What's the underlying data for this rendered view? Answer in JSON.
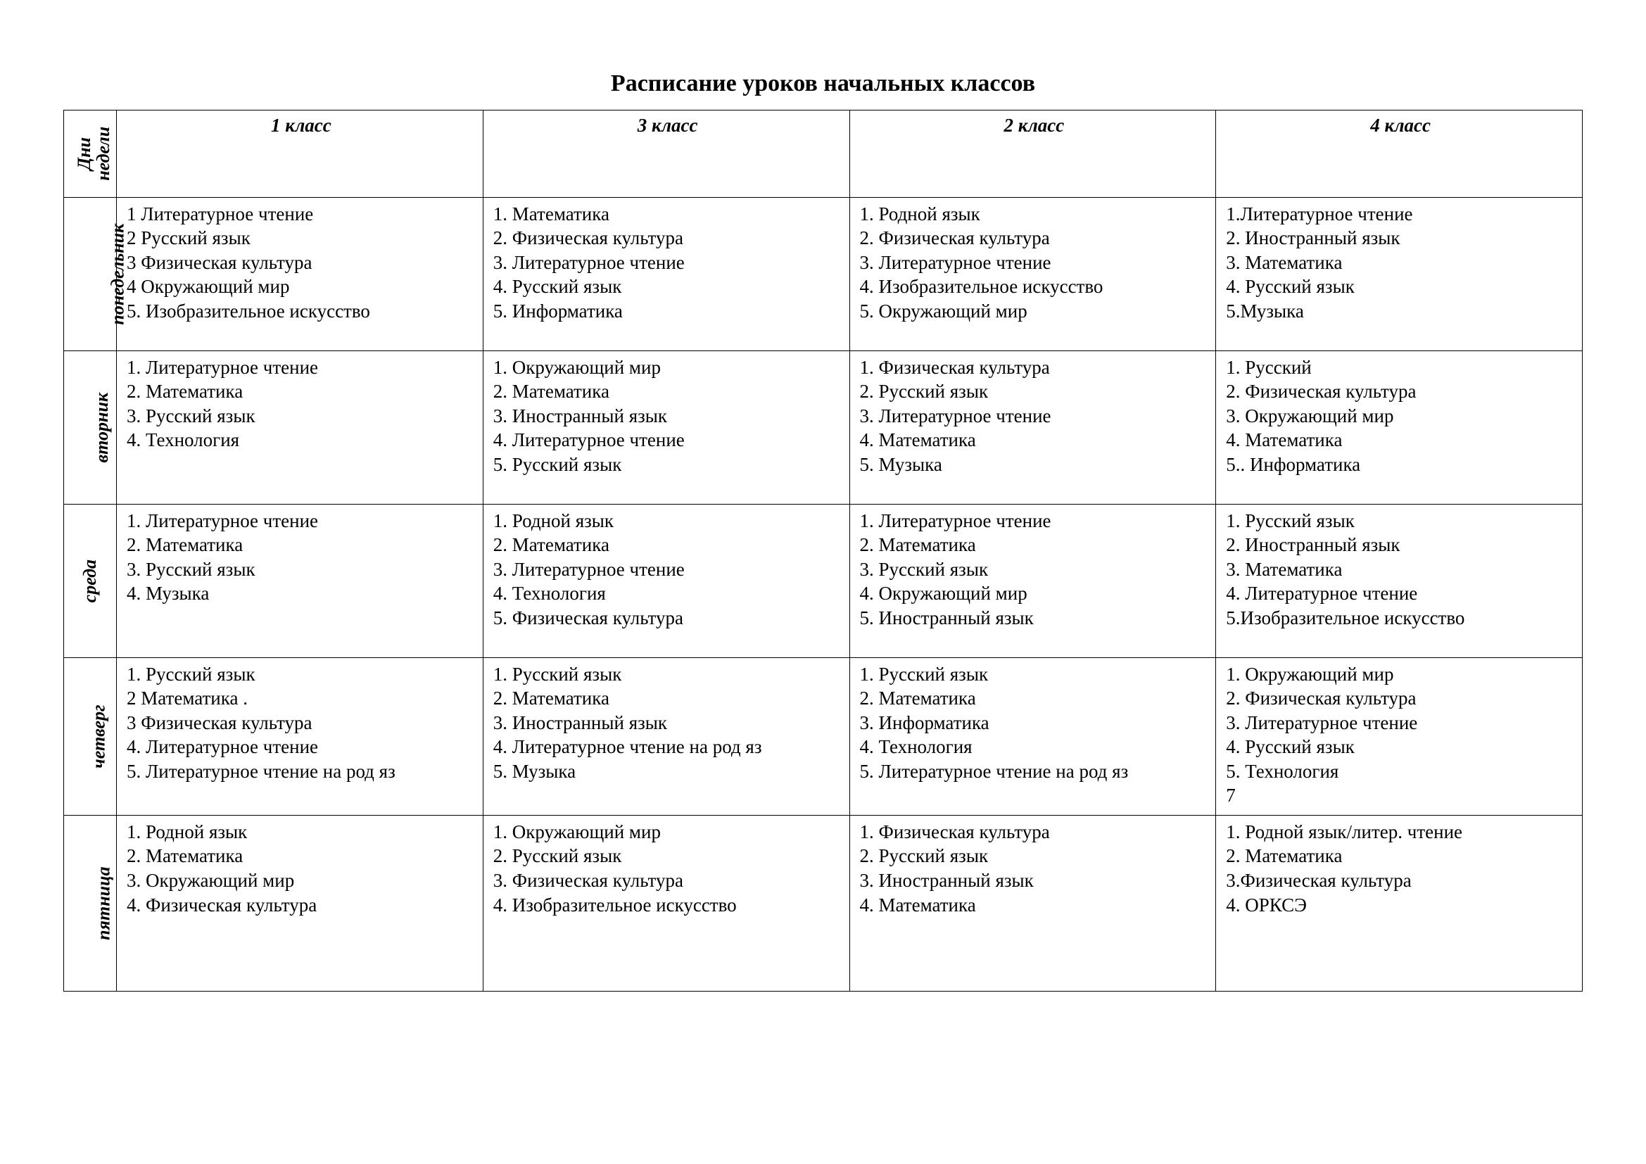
{
  "title": "Расписание уроков начальных классов",
  "header_corner_line1": "Дни",
  "header_corner_line2": "недели",
  "columns": [
    "1 класс",
    "3 класс",
    "2 класс",
    "4 класс"
  ],
  "days": [
    "понедельник",
    "вторник",
    "среда",
    "четверг",
    "пятница"
  ],
  "style": {
    "page_background": "#ffffff",
    "text_color": "#000000",
    "border_color": "#000000",
    "font_family": "Times New Roman",
    "title_fontsize_pt": 34,
    "body_fontsize_pt": 27,
    "day_fontsize_pt": 26
  },
  "schedule": {
    "mon": {
      "c1": [
        "1 Литературное чтение",
        "2 Русский язык",
        "3 Физическая культура",
        "4 Окружающий мир",
        "5. Изобразительное искусство"
      ],
      "c3": [
        "1. Математика",
        "2. Физическая культура",
        "3. Литературное чтение",
        "4. Русский язык",
        "5. Информатика"
      ],
      "c2": [
        "1. Родной язык",
        "2. Физическая культура",
        "3. Литературное чтение",
        "4. Изобразительное искусство",
        "5. Окружающий мир"
      ],
      "c4": [
        "1.Литературное чтение",
        "2. Иностранный язык",
        "3. Математика",
        "4. Русский язык",
        "5.Музыка"
      ]
    },
    "tue": {
      "c1": [
        "1. Литературное чтение",
        "2. Математика",
        "3. Русский язык",
        "4. Технология"
      ],
      "c3": [
        "1. Окружающий мир",
        "2. Математика",
        "3. Иностранный язык",
        "4. Литературное чтение",
        "5. Русский язык"
      ],
      "c2": [
        "1. Физическая культура",
        "2. Русский язык",
        "3. Литературное чтение",
        "4. Математика",
        "5. Музыка"
      ],
      "c4": [
        "1. Русский",
        "2. Физическая культура",
        "3. Окружающий мир",
        "4. Математика",
        "5.. Информатика"
      ]
    },
    "wed": {
      "c1": [
        "1. Литературное чтение",
        "2. Математика",
        "3. Русский язык",
        "4. Музыка"
      ],
      "c3": [
        "1. Родной язык",
        "2. Математика",
        "3. Литературное чтение",
        "4. Технология",
        "5. Физическая культура"
      ],
      "c2": [
        "1. Литературное чтение",
        "2. Математика",
        "3. Русский язык",
        "4. Окружающий мир",
        "5. Иностранный язык"
      ],
      "c4": [
        "1. Русский язык",
        "2. Иностранный язык",
        "3. Математика",
        "4. Литературное чтение",
        "5.Изобразительное искусство"
      ]
    },
    "thu": {
      "c1": [
        "1. Русский язык",
        "2 Математика  .",
        "3 Физическая культура",
        "4. Литературное чтение",
        "5. Литературное чтение на род яз"
      ],
      "c3": [
        "1. Русский язык",
        "2. Математика",
        "3. Иностранный язык",
        "4. Литературное чтение на род яз",
        "5. Музыка"
      ],
      "c2": [
        "1. Русский язык",
        "2. Математика",
        "3. Информатика",
        "4. Технология",
        "5. Литературное чтение на род яз"
      ],
      "c4": [
        "1. Окружающий мир",
        "2. Физическая культура",
        "3. Литературное чтение",
        "4. Русский язык",
        "5. Технология",
        "7"
      ]
    },
    "fri": {
      "c1": [
        "1. Родной язык",
        "2. Математика",
        "3. Окружающий мир",
        "4. Физическая культура"
      ],
      "c3": [
        "1. Окружающий мир",
        "2. Русский язык",
        "3. Физическая культура",
        "4. Изобразительное искусство"
      ],
      "c2": [
        "1. Физическая культура",
        "2. Русский язык",
        "3. Иностранный язык",
        "4. Математика"
      ],
      "c4": [
        "1. Родной язык/литер. чтение",
        "2. Математика",
        "3.Физическая культура",
        "4. ОРКСЭ"
      ]
    }
  }
}
